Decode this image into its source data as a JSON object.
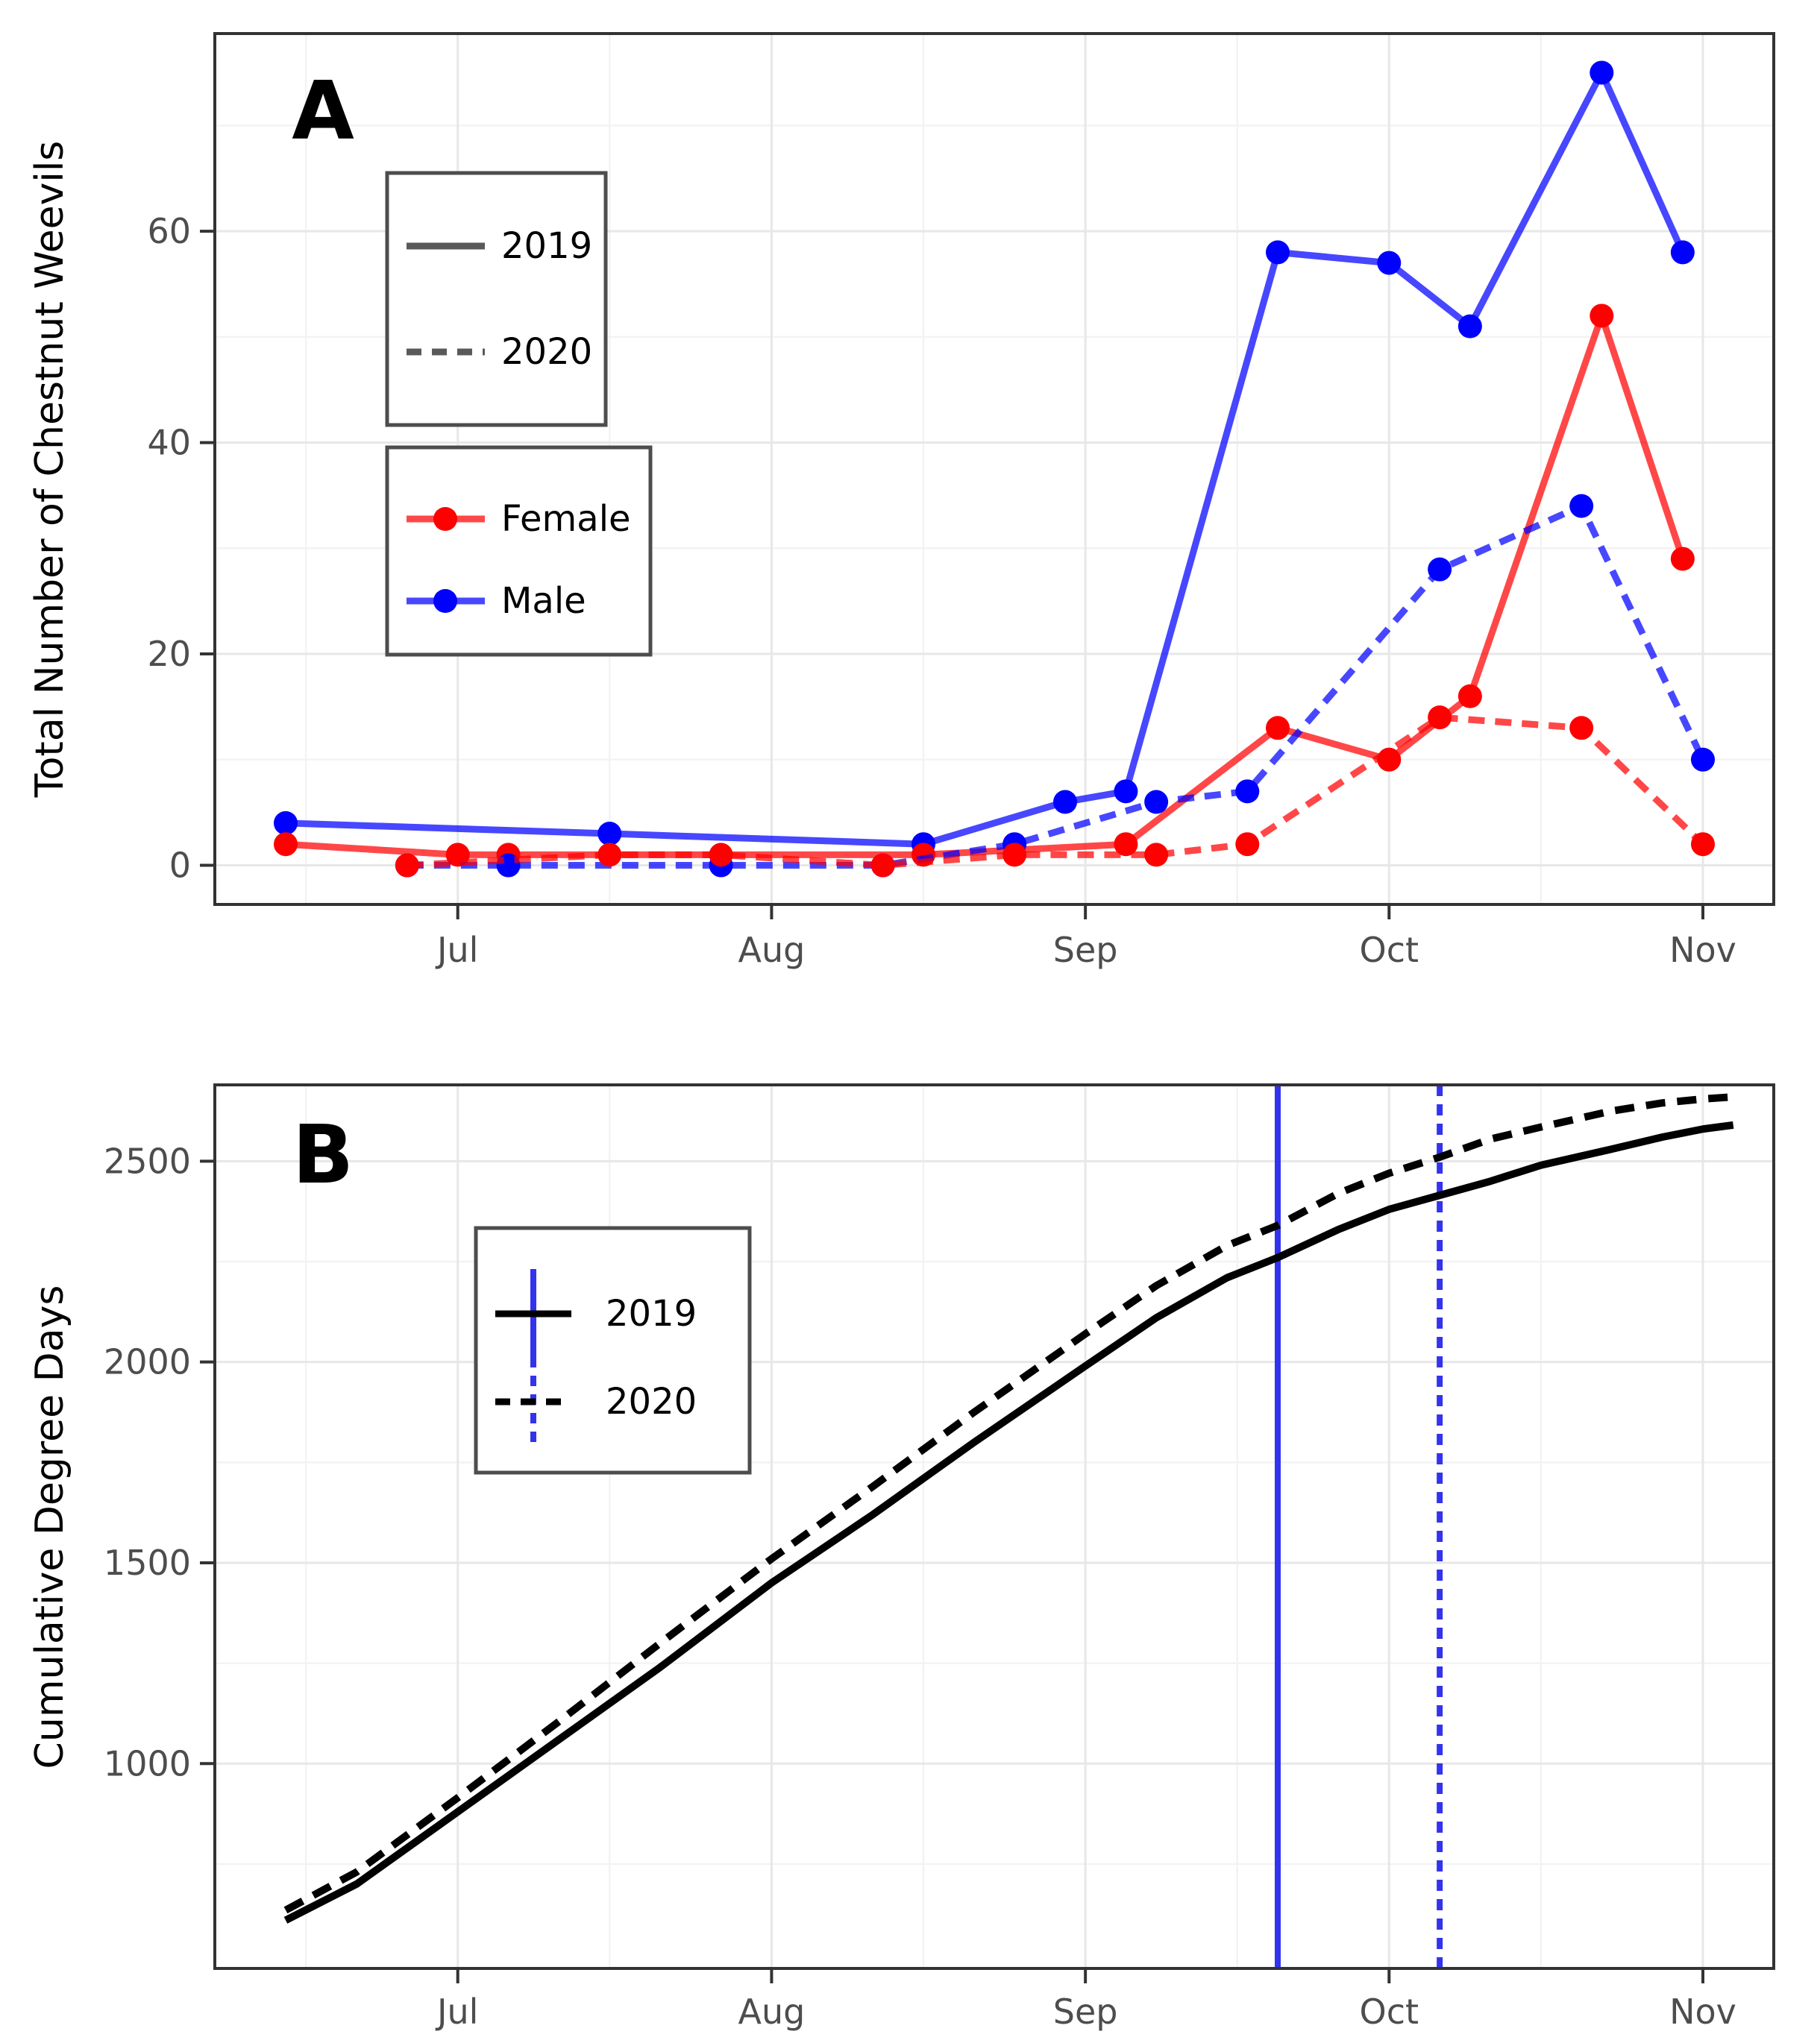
{
  "figure": {
    "background": "#FFFFFF",
    "panel_a_letter": "A",
    "panel_b_letter": "B"
  },
  "colors": {
    "female": "#FF0000",
    "male": "#0000FF",
    "series_line_opacity": 0.72,
    "black_line": "#000000",
    "vline_blue": "#3333EE",
    "grid_major": "#E7E7E7",
    "grid_minor": "#F3F3F3",
    "axis_text": "#4D4D4D",
    "panel_border": "#333333",
    "legend_border": "#4D4D4D",
    "legend_key_gray": "#595959"
  },
  "chart_data": [
    {
      "id": "A",
      "type": "line",
      "panel_label": "A",
      "ylabel": "Total Number of Chestnut Weevils",
      "xlabel": "",
      "xlim": [
        158,
        312
      ],
      "ylim": [
        -3.7,
        78.7
      ],
      "grid": true,
      "xticks": [
        {
          "day": 182,
          "label": "Jul"
        },
        {
          "day": 213,
          "label": "Aug"
        },
        {
          "day": 244,
          "label": "Sep"
        },
        {
          "day": 274,
          "label": "Oct"
        },
        {
          "day": 305,
          "label": "Nov"
        }
      ],
      "xminor": [
        167,
        197,
        228,
        259,
        289
      ],
      "yticks": [
        0,
        20,
        40,
        60
      ],
      "yminor": [
        10,
        30,
        50,
        70
      ],
      "legend_linetype": {
        "entries": [
          {
            "label": "2019",
            "line": "solid"
          },
          {
            "label": "2020",
            "line": "dashed"
          }
        ]
      },
      "legend_sex": {
        "entries": [
          {
            "label": "Female",
            "color_key": "female"
          },
          {
            "label": "Male",
            "color_key": "male"
          }
        ]
      },
      "series": [
        {
          "name": "Male 2019",
          "sex": "male",
          "year": "2019",
          "dash": "solid",
          "points": [
            [
              165,
              4
            ],
            [
              197,
              3
            ],
            [
              228,
              2
            ],
            [
              242,
              6
            ],
            [
              248,
              7
            ],
            [
              263,
              58
            ],
            [
              274,
              57
            ],
            [
              282,
              51
            ],
            [
              295,
              75
            ],
            [
              303,
              58
            ]
          ]
        },
        {
          "name": "Female 2019",
          "sex": "female",
          "year": "2019",
          "dash": "solid",
          "points": [
            [
              165,
              2
            ],
            [
              182,
              1
            ],
            [
              187,
              1
            ],
            [
              228,
              1
            ],
            [
              248,
              2
            ],
            [
              263,
              13
            ],
            [
              274,
              10
            ],
            [
              282,
              16
            ],
            [
              295,
              52
            ],
            [
              303,
              29
            ]
          ]
        },
        {
          "name": "Male 2020",
          "sex": "male",
          "year": "2020",
          "dash": "dashed",
          "points": [
            [
              177,
              0
            ],
            [
              187,
              0
            ],
            [
              208,
              0
            ],
            [
              224,
              0
            ],
            [
              237,
              2
            ],
            [
              251,
              6
            ],
            [
              260,
              7
            ],
            [
              279,
              28
            ],
            [
              293,
              34
            ],
            [
              305,
              10
            ]
          ]
        },
        {
          "name": "Female 2020",
          "sex": "female",
          "year": "2020",
          "dash": "dashed",
          "points": [
            [
              177,
              0
            ],
            [
              197,
              1
            ],
            [
              208,
              1
            ],
            [
              224,
              0
            ],
            [
              237,
              1
            ],
            [
              251,
              1
            ],
            [
              260,
              2
            ],
            [
              279,
              14
            ],
            [
              293,
              13
            ],
            [
              305,
              2
            ]
          ]
        }
      ]
    },
    {
      "id": "B",
      "type": "line",
      "panel_label": "B",
      "ylabel": "Cumulative Degree Days",
      "xlabel": "",
      "xlim": [
        158,
        312
      ],
      "ylim": [
        490,
        2690
      ],
      "grid": true,
      "xticks": [
        {
          "day": 182,
          "label": "Jul"
        },
        {
          "day": 213,
          "label": "Aug"
        },
        {
          "day": 244,
          "label": "Sep"
        },
        {
          "day": 274,
          "label": "Oct"
        },
        {
          "day": 305,
          "label": "Nov"
        }
      ],
      "xminor": [
        167,
        197,
        228,
        259,
        289
      ],
      "yticks": [
        1000,
        1500,
        2000,
        2500
      ],
      "yminor": [
        750,
        1250,
        1750,
        2250
      ],
      "legend_year": {
        "entries": [
          {
            "label": "2019",
            "line": "solid"
          },
          {
            "label": "2020",
            "line": "dashed"
          }
        ]
      },
      "vlines": [
        {
          "day": 263,
          "dash": "solid",
          "label": "2019 peak"
        },
        {
          "day": 279,
          "dash": "dashed",
          "label": "2020 peak"
        }
      ],
      "series": [
        {
          "name": "2019",
          "dash": "solid",
          "points": [
            [
              165,
              610
            ],
            [
              172,
              700
            ],
            [
              182,
              880
            ],
            [
              192,
              1060
            ],
            [
              202,
              1240
            ],
            [
              213,
              1450
            ],
            [
              223,
              1620
            ],
            [
              233,
              1800
            ],
            [
              244,
              1990
            ],
            [
              251,
              2110
            ],
            [
              258,
              2210
            ],
            [
              263,
              2260
            ],
            [
              269,
              2330
            ],
            [
              274,
              2380
            ],
            [
              279,
              2415
            ],
            [
              284,
              2450
            ],
            [
              289,
              2490
            ],
            [
              296,
              2530
            ],
            [
              301,
              2560
            ],
            [
              305,
              2580
            ],
            [
              308,
              2590
            ]
          ]
        },
        {
          "name": "2020",
          "dash": "dashed",
          "points": [
            [
              165,
              635
            ],
            [
              172,
              730
            ],
            [
              182,
              915
            ],
            [
              192,
              1105
            ],
            [
              202,
              1300
            ],
            [
              213,
              1510
            ],
            [
              223,
              1690
            ],
            [
              233,
              1875
            ],
            [
              244,
              2070
            ],
            [
              251,
              2190
            ],
            [
              258,
              2290
            ],
            [
              263,
              2340
            ],
            [
              269,
              2420
            ],
            [
              274,
              2470
            ],
            [
              279,
              2510
            ],
            [
              284,
              2555
            ],
            [
              289,
              2585
            ],
            [
              296,
              2625
            ],
            [
              301,
              2645
            ],
            [
              305,
              2655
            ],
            [
              308,
              2660
            ]
          ]
        }
      ]
    }
  ]
}
